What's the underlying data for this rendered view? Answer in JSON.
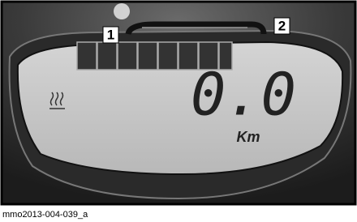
{
  "callouts": [
    {
      "label": "1"
    },
    {
      "label": "2"
    }
  ],
  "display": {
    "reading": "0.0",
    "unit": "Km"
  },
  "caption": "mmo2013-004-039_a"
}
